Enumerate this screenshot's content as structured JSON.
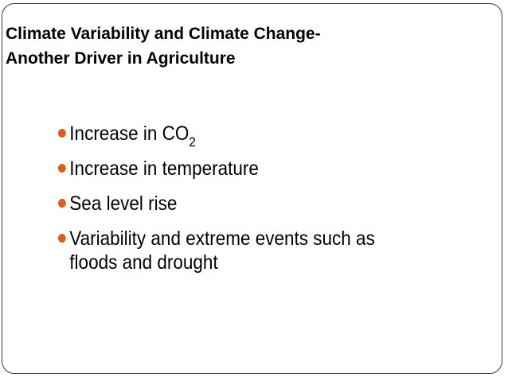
{
  "slide": {
    "title_line_1": "Climate Variability and Climate Change-",
    "title_line_2": "Another Driver in Agriculture",
    "bullet_color": "#d95f1a",
    "bullets": [
      {
        "text": "Increase in CO",
        "subscript": "2"
      },
      {
        "text": "Increase in temperature"
      },
      {
        "text": "Sea level rise"
      },
      {
        "line_1": "Variability and extreme events such as",
        "line_2": "floods and drought"
      }
    ]
  }
}
